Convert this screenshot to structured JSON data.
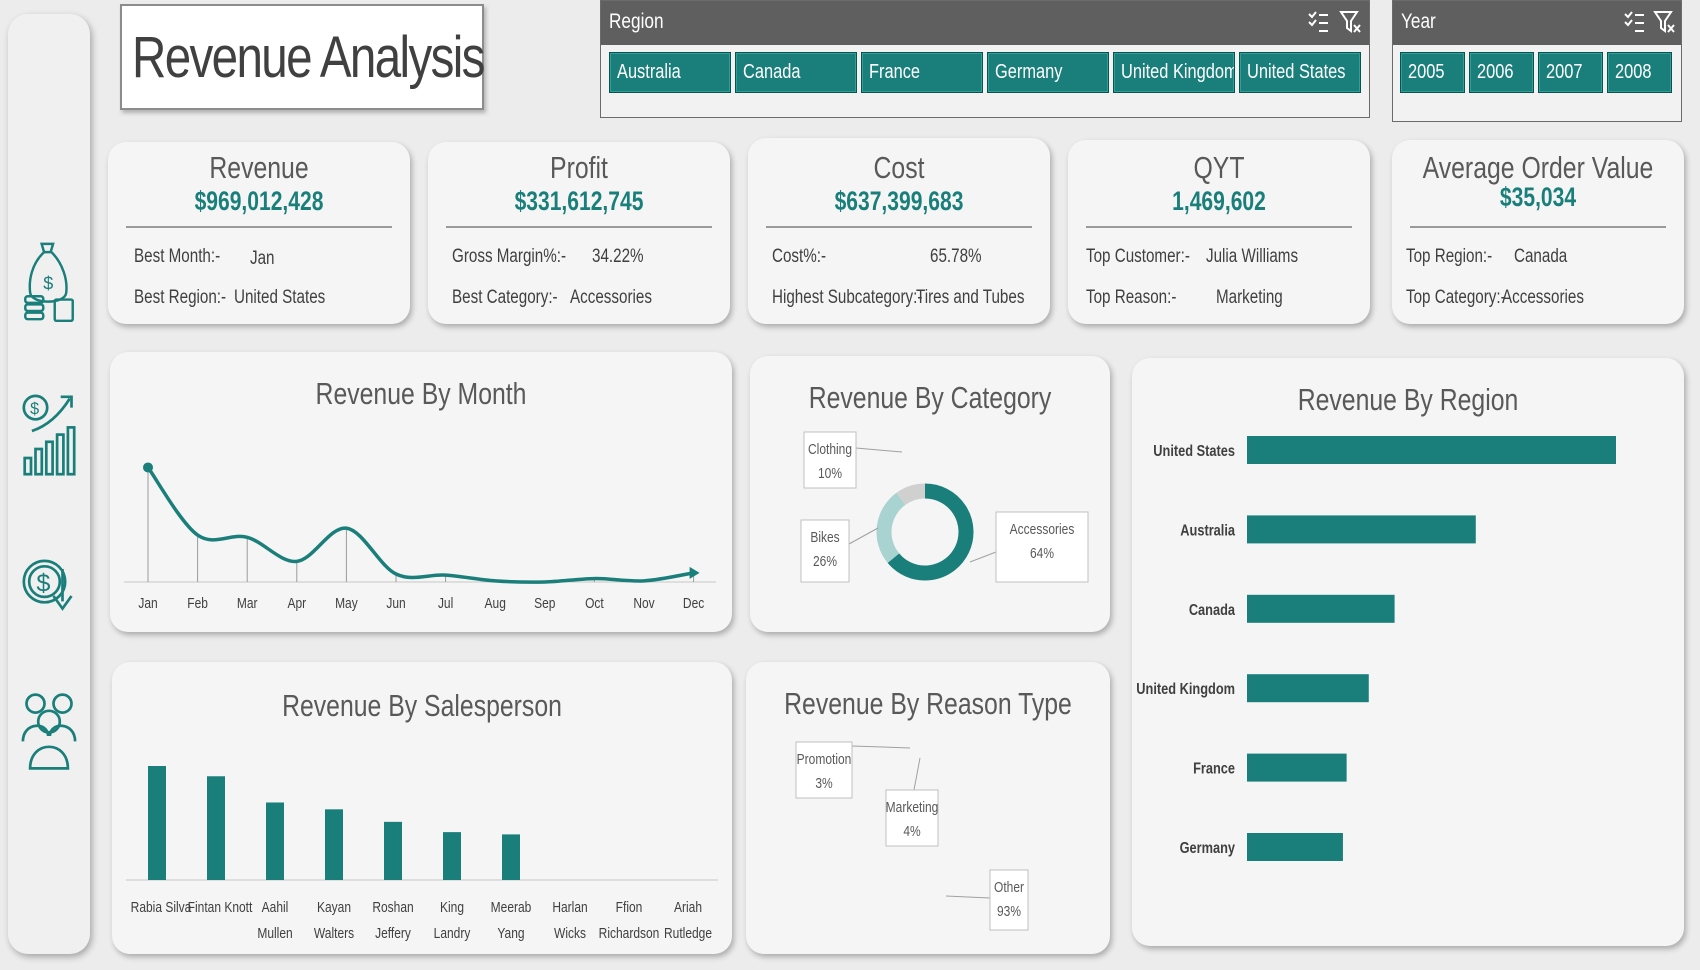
{
  "title": "Revenue Analysis",
  "sidebar": {
    "icons": [
      "money-bag-icon",
      "growth-chart-icon",
      "cost-down-icon",
      "team-icon"
    ]
  },
  "region_slicer": {
    "title": "Region",
    "options": [
      "Australia",
      "Canada",
      "France",
      "Germany",
      "United Kingdom",
      "United States"
    ]
  },
  "year_slicer": {
    "title": "Year",
    "options": [
      "2005",
      "2006",
      "2007",
      "2008"
    ]
  },
  "kpis": [
    {
      "title": "Revenue",
      "value": "$969,012,428",
      "row1_label": "Best Month:-",
      "row1_value": "Jan",
      "row2_label": "Best Region:-",
      "row2_value": "United States"
    },
    {
      "title": "Profit",
      "value": "$331,612,745",
      "row1_label": "Gross Margin%:-",
      "row1_value": "34.22%",
      "row2_label": "Best Category:-",
      "row2_value": "Accessories"
    },
    {
      "title": "Cost",
      "value": "$637,399,683",
      "row1_label": "Cost%:-",
      "row1_value": "65.78%",
      "row2_label": "Highest Subcategory:-",
      "row2_value": "Tires and Tubes"
    },
    {
      "title": "QYT",
      "value": "1,469,602",
      "row1_label": "Top Customer:-",
      "row1_value": "Julia Williams",
      "row2_label": "Top Reason:-",
      "row2_value": "Marketing"
    },
    {
      "title": "Average Order Value",
      "value": "$35,034",
      "row1_label": "Top Region:-",
      "row1_value": "Canada",
      "row2_label": "Top Category:-",
      "row2_value": "Accessories"
    }
  ],
  "colors": {
    "accent": "#1a7f7a",
    "accent_light": "#a8d3d0",
    "grey": "#d0d0d0"
  },
  "chart_data": [
    {
      "type": "line",
      "title": "Revenue By Month",
      "categories": [
        "Jan",
        "Feb",
        "Mar",
        "Apr",
        "May",
        "Jun",
        "Jul",
        "Aug",
        "Sep",
        "Oct",
        "Nov",
        "Dec"
      ],
      "values": [
        100,
        41,
        39,
        18,
        47,
        7,
        6,
        1,
        0,
        3,
        1,
        8
      ],
      "ylim": [
        0,
        110
      ]
    },
    {
      "type": "pie",
      "title": "Revenue By Category",
      "labels": [
        "Accessories",
        "Bikes",
        "Clothing"
      ],
      "values": [
        64,
        26,
        10
      ],
      "display": [
        "64%",
        "26%",
        "10%"
      ]
    },
    {
      "type": "bar",
      "orientation": "horizontal",
      "title": "Revenue By Region",
      "categories": [
        "United States",
        "Australia",
        "Canada",
        "United Kingdom",
        "France",
        "Germany"
      ],
      "values": [
        100,
        62,
        40,
        33,
        27,
        26
      ],
      "xlim": [
        0,
        100
      ]
    },
    {
      "type": "bar",
      "title": "Revenue By Salesperson",
      "categories": [
        "Rabia Silva",
        "Fintan Knott",
        "Aahil Mullen",
        "Kayan Walters",
        "Roshan Jeffery",
        "King Landry",
        "Meerab Yang",
        "Harlan Wicks",
        "Ffion Richardson",
        "Ariah Rutledge"
      ],
      "values": [
        100,
        91,
        68,
        62,
        51,
        42,
        40,
        0,
        0,
        0
      ],
      "ylim": [
        0,
        100
      ]
    },
    {
      "type": "pie",
      "title": "Revenue By Reason Type",
      "labels": [
        "Other",
        "Marketing",
        "Promotion"
      ],
      "values": [
        93,
        4,
        3
      ],
      "display": [
        "93%",
        "4%",
        "3%"
      ]
    }
  ]
}
